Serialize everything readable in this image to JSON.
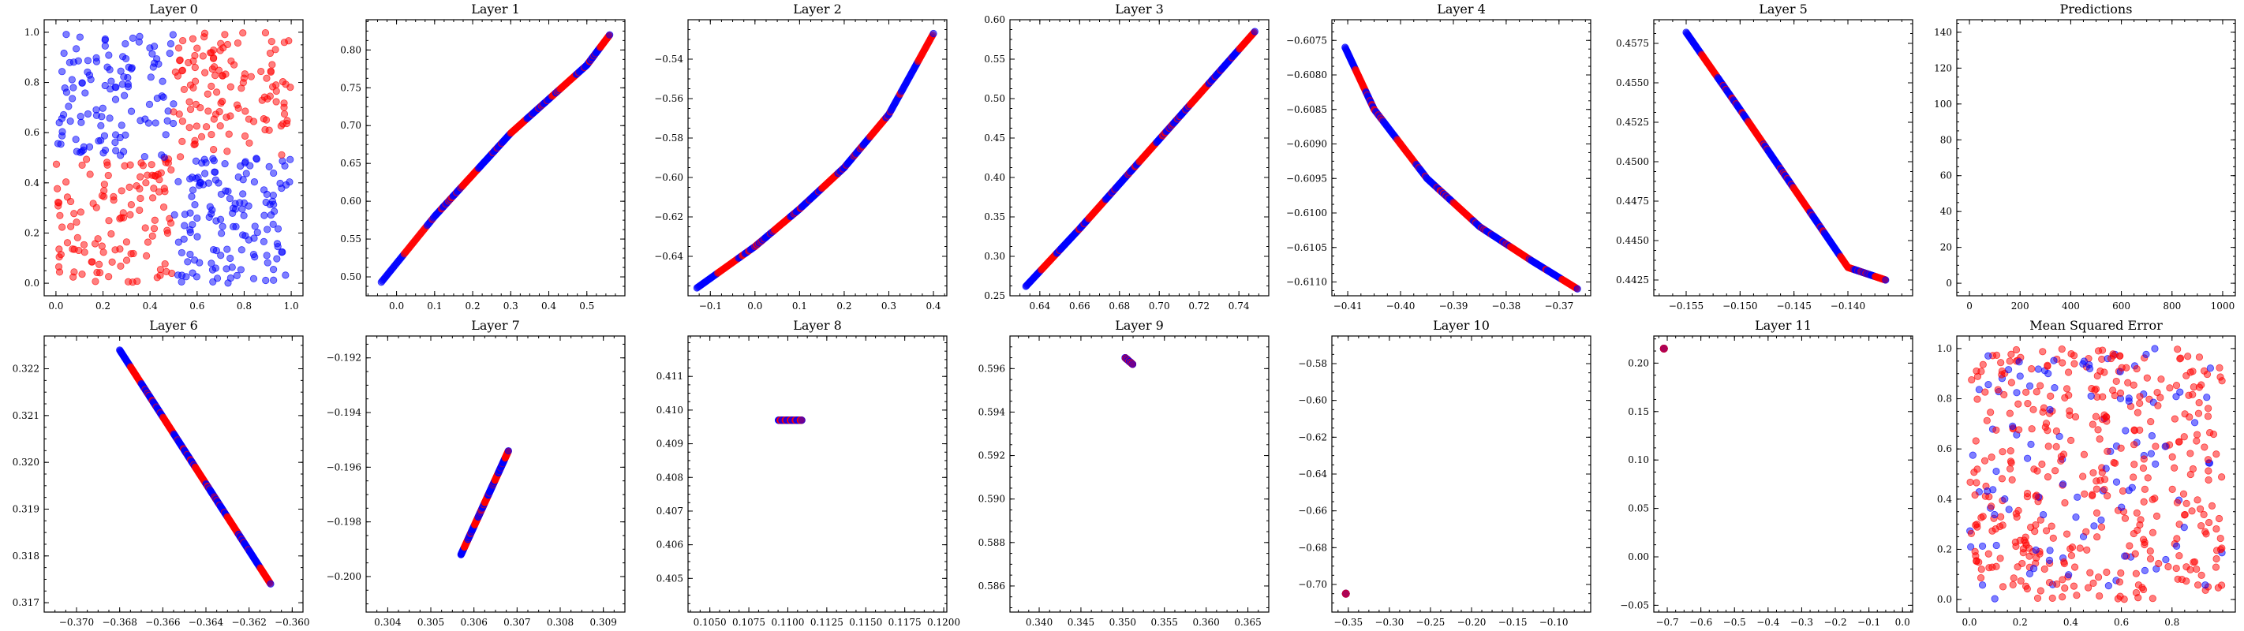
{
  "figure": {
    "colors": {
      "red": "#ff0000",
      "blue": "#0000ff",
      "purple": "#7a0c9a"
    }
  },
  "chart_data": [
    {
      "type": "scatter",
      "title": "Layer 0",
      "kind": "random",
      "xlim": [
        -0.05,
        1.05
      ],
      "ylim": [
        -0.05,
        1.05
      ],
      "xticks": [
        0.0,
        0.2,
        0.4,
        0.6,
        0.8,
        1.0
      ],
      "yticks": [
        0.0,
        0.2,
        0.4,
        0.6,
        0.8,
        1.0
      ],
      "xtick_labels": [
        "0.0",
        "0.2",
        "0.4",
        "0.6",
        "0.8",
        "1.0"
      ],
      "ytick_labels": [
        "0.0",
        "0.2",
        "0.4",
        "0.6",
        "0.8",
        "1.0"
      ]
    },
    {
      "type": "scatter",
      "title": "Layer 1",
      "kind": "curve",
      "xlim": [
        -0.08,
        0.6
      ],
      "ylim": [
        0.475,
        0.84
      ],
      "curve": [
        [
          -0.04,
          0.493
        ],
        [
          0.1,
          0.58
        ],
        [
          0.2,
          0.635
        ],
        [
          0.3,
          0.69
        ],
        [
          0.4,
          0.735
        ],
        [
          0.5,
          0.78
        ],
        [
          0.56,
          0.82
        ]
      ],
      "xticks": [
        0.0,
        0.1,
        0.2,
        0.3,
        0.4,
        0.5
      ],
      "yticks": [
        0.5,
        0.55,
        0.6,
        0.65,
        0.7,
        0.75,
        0.8
      ],
      "xtick_labels": [
        "0.0",
        "0.1",
        "0.2",
        "0.3",
        "0.4",
        "0.5"
      ],
      "ytick_labels": [
        "0.50",
        "0.55",
        "0.60",
        "0.65",
        "0.70",
        "0.75",
        "0.80"
      ]
    },
    {
      "type": "scatter",
      "title": "Layer 2",
      "kind": "curve",
      "xlim": [
        -0.15,
        0.43
      ],
      "ylim": [
        -0.66,
        -0.52
      ],
      "curve": [
        [
          -0.13,
          -0.656
        ],
        [
          0.0,
          -0.635
        ],
        [
          0.1,
          -0.616
        ],
        [
          0.2,
          -0.595
        ],
        [
          0.3,
          -0.568
        ],
        [
          0.4,
          -0.527
        ]
      ],
      "xticks": [
        -0.1,
        0.0,
        0.1,
        0.2,
        0.3,
        0.4
      ],
      "yticks": [
        -0.64,
        -0.62,
        -0.6,
        -0.58,
        -0.56,
        -0.54
      ],
      "xtick_labels": [
        "−0.1",
        "0.0",
        "0.1",
        "0.2",
        "0.3",
        "0.4"
      ],
      "ytick_labels": [
        "−0.64",
        "−0.62",
        "−0.60",
        "−0.58",
        "−0.56",
        "−0.54"
      ]
    },
    {
      "type": "scatter",
      "title": "Layer 3",
      "kind": "curve",
      "xlim": [
        0.625,
        0.755
      ],
      "ylim": [
        0.25,
        0.6
      ],
      "curve": [
        [
          0.633,
          0.262
        ],
        [
          0.66,
          0.335
        ],
        [
          0.69,
          0.42
        ],
        [
          0.72,
          0.505
        ],
        [
          0.748,
          0.585
        ]
      ],
      "xticks": [
        0.64,
        0.66,
        0.68,
        0.7,
        0.72,
        0.74
      ],
      "yticks": [
        0.25,
        0.3,
        0.35,
        0.4,
        0.45,
        0.5,
        0.55,
        0.6
      ],
      "xtick_labels": [
        "0.64",
        "0.66",
        "0.68",
        "0.70",
        "0.72",
        "0.74"
      ],
      "ytick_labels": [
        "0.25",
        "0.30",
        "0.35",
        "0.40",
        "0.45",
        "0.50",
        "0.55",
        "0.60"
      ]
    },
    {
      "type": "scatter",
      "title": "Layer 4",
      "kind": "curve",
      "xlim": [
        -0.413,
        -0.364
      ],
      "ylim": [
        -0.6112,
        -0.6072
      ],
      "curve": [
        [
          -0.4105,
          -0.6076
        ],
        [
          -0.405,
          -0.6085
        ],
        [
          -0.395,
          -0.6095
        ],
        [
          -0.385,
          -0.6102
        ],
        [
          -0.375,
          -0.6107
        ],
        [
          -0.3665,
          -0.6111
        ]
      ],
      "xticks": [
        -0.41,
        -0.4,
        -0.39,
        -0.38,
        -0.37
      ],
      "yticks": [
        -0.611,
        -0.6105,
        -0.61,
        -0.6095,
        -0.609,
        -0.6085,
        -0.608,
        -0.6075
      ],
      "xtick_labels": [
        "−0.41",
        "−0.40",
        "−0.39",
        "−0.38",
        "−0.37"
      ],
      "ytick_labels": [
        "−0.6110",
        "−0.6105",
        "−0.6100",
        "−0.6095",
        "−0.6090",
        "−0.6085",
        "−0.6080",
        "−0.6075"
      ]
    },
    {
      "type": "scatter",
      "title": "Layer 5",
      "kind": "curve",
      "xlim": [
        -0.158,
        -0.134
      ],
      "ylim": [
        0.4415,
        0.459
      ],
      "curve": [
        [
          -0.155,
          0.4582
        ],
        [
          -0.15,
          0.4533
        ],
        [
          -0.145,
          0.4483
        ],
        [
          -0.14,
          0.4433
        ],
        [
          -0.1365,
          0.4425
        ]
      ],
      "xticks": [
        -0.155,
        -0.15,
        -0.145,
        -0.14
      ],
      "yticks": [
        0.4425,
        0.445,
        0.4475,
        0.45,
        0.4525,
        0.455,
        0.4575
      ],
      "xtick_labels": [
        "−0.155",
        "−0.150",
        "−0.145",
        "−0.140"
      ],
      "ytick_labels": [
        "0.4425",
        "0.4450",
        "0.4475",
        "0.4500",
        "0.4525",
        "0.4550",
        "0.4575"
      ]
    },
    {
      "type": "scatter",
      "title": "Predictions",
      "kind": "empty",
      "xlim": [
        -50,
        1050
      ],
      "ylim": [
        -7,
        147
      ],
      "xticks": [
        0,
        200,
        400,
        600,
        800,
        1000
      ],
      "yticks": [
        0,
        20,
        40,
        60,
        80,
        100,
        120,
        140
      ],
      "xtick_labels": [
        "0",
        "200",
        "400",
        "600",
        "800",
        "1000"
      ],
      "ytick_labels": [
        "0",
        "20",
        "40",
        "60",
        "80",
        "100",
        "120",
        "140"
      ]
    },
    {
      "type": "scatter",
      "title": "Layer 6",
      "kind": "curve",
      "xlim": [
        -0.3715,
        -0.3595
      ],
      "ylim": [
        0.3168,
        0.3227
      ],
      "curve": [
        [
          -0.368,
          0.3224
        ],
        [
          -0.361,
          0.3174
        ]
      ],
      "xticks": [
        -0.37,
        -0.368,
        -0.366,
        -0.364,
        -0.362,
        -0.36
      ],
      "yticks": [
        0.317,
        0.318,
        0.319,
        0.32,
        0.321,
        0.322
      ],
      "xtick_labels": [
        "−0.370",
        "−0.368",
        "−0.366",
        "−0.364",
        "−0.362",
        "−0.360"
      ],
      "ytick_labels": [
        "0.317",
        "0.318",
        "0.319",
        "0.320",
        "0.321",
        "0.322"
      ]
    },
    {
      "type": "scatter",
      "title": "Layer 7",
      "kind": "curve",
      "xlim": [
        0.3035,
        0.3095
      ],
      "ylim": [
        -0.2013,
        -0.1912
      ],
      "curve": [
        [
          0.3057,
          -0.1992
        ],
        [
          0.3068,
          -0.1954
        ]
      ],
      "xticks": [
        0.304,
        0.305,
        0.306,
        0.307,
        0.308,
        0.309
      ],
      "yticks": [
        -0.2,
        -0.198,
        -0.196,
        -0.194,
        -0.192
      ],
      "xtick_labels": [
        "0.304",
        "0.305",
        "0.306",
        "0.307",
        "0.308",
        "0.309"
      ],
      "ytick_labels": [
        "−0.200",
        "−0.198",
        "−0.196",
        "−0.194",
        "−0.192"
      ]
    },
    {
      "type": "scatter",
      "title": "Layer 8",
      "kind": "curve",
      "xlim": [
        0.1036,
        0.1202
      ],
      "ylim": [
        0.404,
        0.4122
      ],
      "curve": [
        [
          0.1094,
          0.4097
        ],
        [
          0.1109,
          0.4097
        ]
      ],
      "xticks": [
        0.105,
        0.1075,
        0.11,
        0.1125,
        0.115,
        0.1175,
        0.12
      ],
      "yticks": [
        0.405,
        0.406,
        0.407,
        0.408,
        0.409,
        0.41,
        0.411
      ],
      "xtick_labels": [
        "0.1050",
        "0.1075",
        "0.1100",
        "0.1125",
        "0.1150",
        "0.1175",
        "0.1200"
      ],
      "ytick_labels": [
        "0.405",
        "0.406",
        "0.407",
        "0.408",
        "0.409",
        "0.410",
        "0.411"
      ]
    },
    {
      "type": "scatter",
      "title": "Layer 9",
      "kind": "curve",
      "xlim": [
        0.3365,
        0.3675
      ],
      "ylim": [
        0.5848,
        0.5975
      ],
      "curve": [
        [
          0.3503,
          0.5965
        ],
        [
          0.3512,
          0.5962
        ]
      ],
      "xticks": [
        0.34,
        0.345,
        0.35,
        0.355,
        0.36,
        0.365
      ],
      "yticks": [
        0.586,
        0.588,
        0.59,
        0.592,
        0.594,
        0.596
      ],
      "xtick_labels": [
        "0.340",
        "0.345",
        "0.350",
        "0.355",
        "0.360",
        "0.365"
      ],
      "ytick_labels": [
        "0.586",
        "0.588",
        "0.590",
        "0.592",
        "0.594",
        "0.596"
      ]
    },
    {
      "type": "scatter",
      "title": "Layer 10",
      "kind": "point",
      "xlim": [
        -0.37,
        -0.055
      ],
      "ylim": [
        -0.715,
        -0.565
      ],
      "point": [
        -0.353,
        -0.705
      ],
      "xticks": [
        -0.35,
        -0.3,
        -0.25,
        -0.2,
        -0.15,
        -0.1
      ],
      "yticks": [
        -0.7,
        -0.68,
        -0.66,
        -0.64,
        -0.62,
        -0.6,
        -0.58
      ],
      "xtick_labels": [
        "−0.35",
        "−0.30",
        "−0.25",
        "−0.20",
        "−0.15",
        "−0.10"
      ],
      "ytick_labels": [
        "−0.70",
        "−0.68",
        "−0.66",
        "−0.64",
        "−0.62",
        "−0.60",
        "−0.58"
      ]
    },
    {
      "type": "scatter",
      "title": "Layer 11",
      "kind": "point",
      "xlim": [
        -0.74,
        0.03
      ],
      "ylim": [
        -0.057,
        0.228
      ],
      "point": [
        -0.71,
        0.215
      ],
      "xticks": [
        -0.7,
        -0.6,
        -0.5,
        -0.4,
        -0.3,
        -0.2,
        -0.1,
        0.0
      ],
      "yticks": [
        -0.05,
        0.0,
        0.05,
        0.1,
        0.15,
        0.2
      ],
      "xtick_labels": [
        "−0.7",
        "−0.6",
        "−0.5",
        "−0.4",
        "−0.3",
        "−0.2",
        "−0.1",
        "0.0"
      ],
      "ytick_labels": [
        "−0.05",
        "0.00",
        "0.05",
        "0.10",
        "0.15",
        "0.20"
      ]
    },
    {
      "type": "scatter",
      "title": "Mean Squared Error",
      "kind": "random_mse",
      "xlim": [
        -0.05,
        1.05
      ],
      "ylim": [
        -0.05,
        1.05
      ],
      "xticks": [
        0.0,
        0.2,
        0.4,
        0.6,
        0.8
      ],
      "yticks": [
        0.0,
        0.2,
        0.4,
        0.6,
        0.8,
        1.0
      ],
      "xtick_labels": [
        "0.0",
        "0.2",
        "0.4",
        "0.6",
        "0.8"
      ],
      "ytick_labels": [
        "0.0",
        "0.2",
        "0.4",
        "0.6",
        "0.8",
        "1.0"
      ]
    }
  ]
}
